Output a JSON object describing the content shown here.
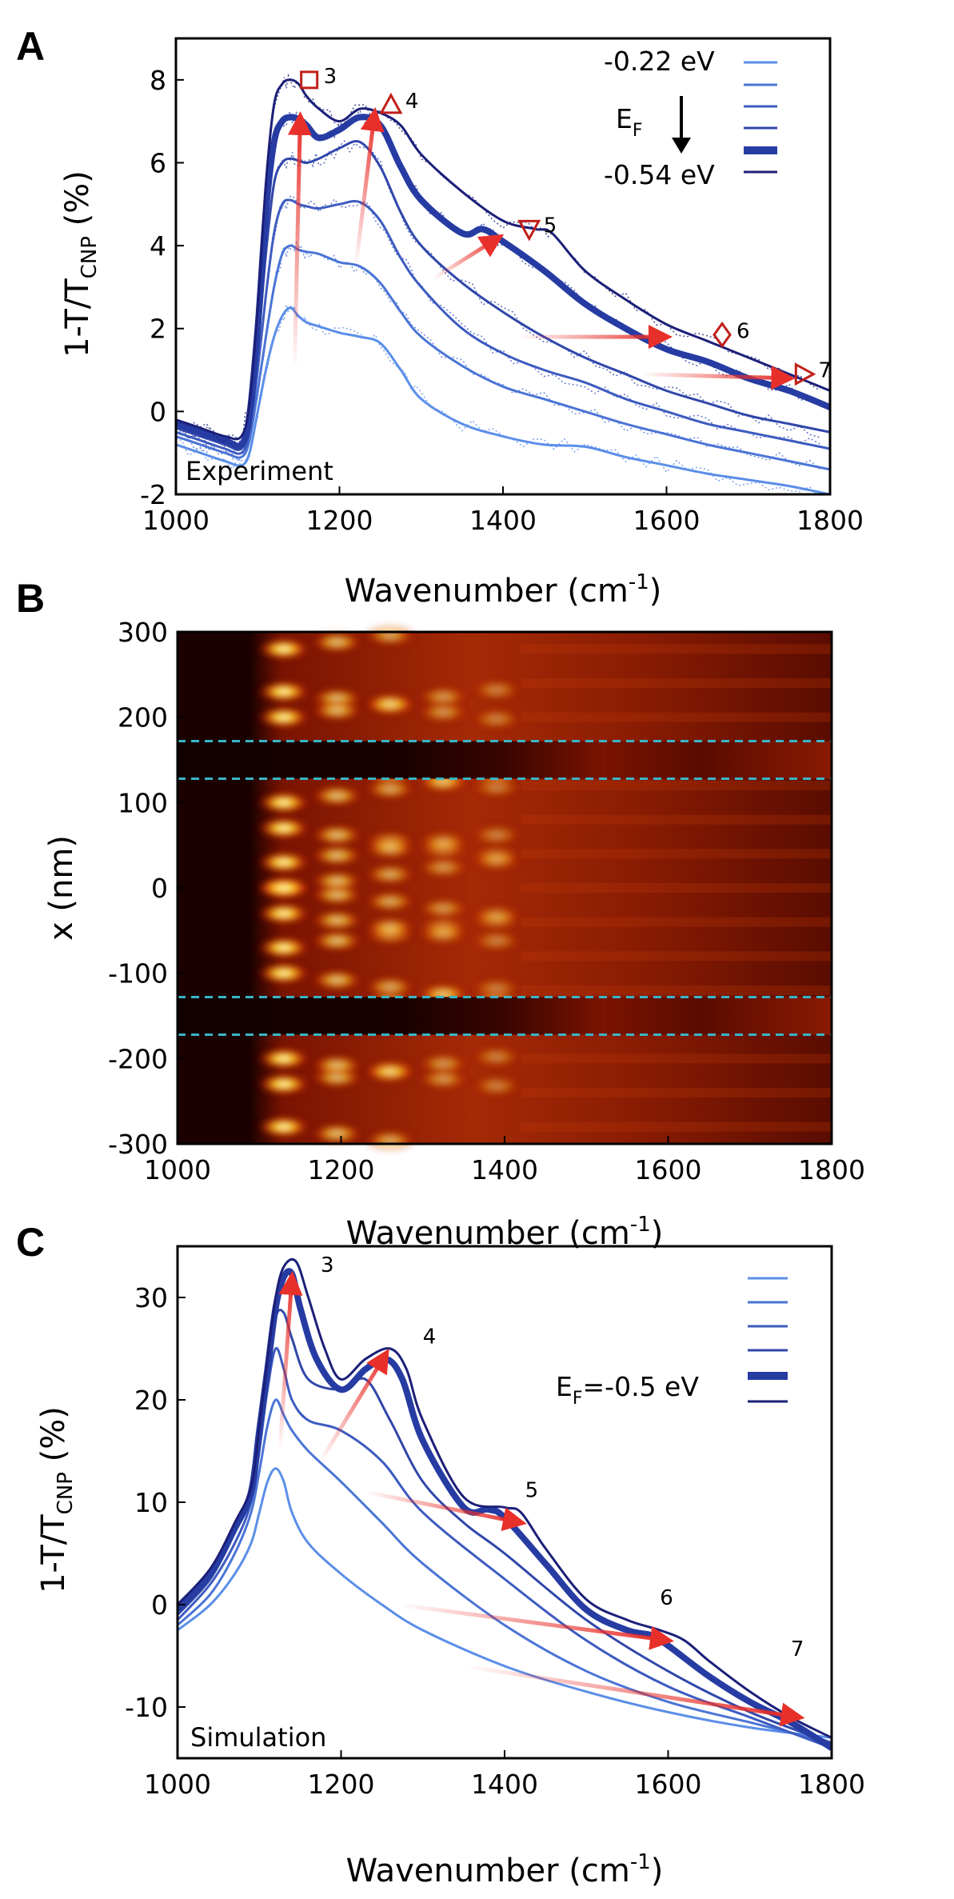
{
  "colors": {
    "series": [
      "#5b8ee8",
      "#4b74d6",
      "#3d5bc0",
      "#3047aa",
      "#263ca3",
      "#1c1f78"
    ],
    "arrow": "#e8302a",
    "marker": "#c0201a",
    "dashed": "#39b6c6",
    "frame": "#000000"
  },
  "chart_data": [
    {
      "panel": "A",
      "type": "line",
      "panel_label": "A",
      "annotation": "Experiment",
      "xlabel": "Wavenumber (cm",
      "xlabel_sup": "-1",
      "xlabel_end": ")",
      "ylabel": "1-T/T",
      "ylabel_sub": "CNP",
      "ylabel_end": " (%)",
      "xlim": [
        1000,
        1800
      ],
      "ylim": [
        -2,
        9
      ],
      "xticks": [
        "1000",
        "1200",
        "1400",
        "1600",
        "1800"
      ],
      "yticks": [
        "-2",
        "0",
        "2",
        "4",
        "6",
        "8"
      ],
      "legend": {
        "top": "-0.22 eV",
        "mid": "E",
        "mid_sub": "F",
        "bottom": "-0.54 eV"
      },
      "peak_labels": [
        {
          "text": "3",
          "x": 1163,
          "y": 8.0,
          "marker": "square"
        },
        {
          "text": "4",
          "x": 1263,
          "y": 7.4,
          "marker": "triangle-up"
        },
        {
          "text": "5",
          "x": 1432,
          "y": 4.4,
          "marker": "triangle-down"
        },
        {
          "text": "6",
          "x": 1668,
          "y": 1.85,
          "marker": "diamond"
        },
        {
          "text": "7",
          "x": 1768,
          "y": 0.9,
          "marker": "triangle-right"
        }
      ],
      "arrows": [
        {
          "from": [
            1145,
            1.0
          ],
          "to": [
            1152,
            7.1
          ]
        },
        {
          "from": [
            1220,
            3.5
          ],
          "to": [
            1243,
            7.2
          ]
        },
        {
          "from": [
            1315,
            3.2
          ],
          "to": [
            1395,
            4.2
          ]
        },
        {
          "from": [
            1420,
            1.8
          ],
          "to": [
            1600,
            1.8
          ]
        },
        {
          "from": [
            1570,
            0.9
          ],
          "to": [
            1750,
            0.8
          ]
        }
      ],
      "series": [
        {
          "x": [
            1000,
            1030,
            1060,
            1080,
            1090,
            1100,
            1110,
            1120,
            1130,
            1140,
            1150,
            1160,
            1175,
            1200,
            1225,
            1250,
            1275,
            1300,
            1350,
            1400,
            1450,
            1500,
            1550,
            1600,
            1650,
            1700,
            1750,
            1800
          ],
          "values": [
            -0.8,
            -1.0,
            -1.2,
            -1.3,
            -1.0,
            0.0,
            1.0,
            1.8,
            2.3,
            2.5,
            2.3,
            2.15,
            2.05,
            1.9,
            1.8,
            1.65,
            1.0,
            0.3,
            -0.3,
            -0.6,
            -0.8,
            -0.85,
            -1.1,
            -1.3,
            -1.5,
            -1.65,
            -1.8,
            -2.0
          ]
        },
        {
          "x": [
            1000,
            1030,
            1060,
            1080,
            1090,
            1100,
            1110,
            1120,
            1130,
            1140,
            1150,
            1160,
            1175,
            1200,
            1225,
            1250,
            1275,
            1300,
            1350,
            1400,
            1450,
            1500,
            1550,
            1600,
            1650,
            1700,
            1750,
            1800
          ],
          "values": [
            -0.6,
            -0.8,
            -1.0,
            -1.1,
            -0.7,
            0.5,
            1.8,
            3.0,
            3.8,
            4.0,
            3.9,
            3.85,
            3.8,
            3.6,
            3.5,
            3.1,
            2.4,
            1.8,
            1.1,
            0.6,
            0.3,
            0.0,
            -0.3,
            -0.55,
            -0.8,
            -1.0,
            -1.2,
            -1.4
          ]
        },
        {
          "x": [
            1000,
            1030,
            1060,
            1080,
            1090,
            1100,
            1110,
            1120,
            1130,
            1140,
            1150,
            1160,
            1175,
            1200,
            1225,
            1250,
            1275,
            1300,
            1350,
            1400,
            1450,
            1500,
            1550,
            1600,
            1650,
            1700,
            1750,
            1800
          ],
          "values": [
            -0.5,
            -0.7,
            -0.9,
            -1.0,
            -0.5,
            1.0,
            2.8,
            4.3,
            5.0,
            5.1,
            5.0,
            4.95,
            4.9,
            5.0,
            5.05,
            4.6,
            3.7,
            3.0,
            2.0,
            1.4,
            1.0,
            0.7,
            0.3,
            0.0,
            -0.3,
            -0.5,
            -0.7,
            -0.9
          ]
        },
        {
          "x": [
            1000,
            1030,
            1060,
            1080,
            1090,
            1100,
            1110,
            1120,
            1130,
            1140,
            1150,
            1160,
            1175,
            1200,
            1225,
            1250,
            1275,
            1300,
            1350,
            1400,
            1450,
            1500,
            1550,
            1600,
            1650,
            1700,
            1750,
            1800
          ],
          "values": [
            -0.4,
            -0.6,
            -0.8,
            -0.9,
            -0.3,
            1.5,
            3.8,
            5.5,
            6.0,
            6.1,
            6.05,
            6.0,
            6.1,
            6.35,
            6.5,
            5.9,
            4.8,
            4.0,
            3.1,
            2.4,
            1.8,
            1.3,
            0.9,
            0.5,
            0.2,
            -0.1,
            -0.3,
            -0.5
          ]
        },
        {
          "x": [
            1000,
            1030,
            1060,
            1080,
            1090,
            1100,
            1110,
            1120,
            1130,
            1140,
            1150,
            1160,
            1175,
            1200,
            1225,
            1250,
            1275,
            1300,
            1350,
            1375,
            1400,
            1450,
            1500,
            1550,
            1600,
            1650,
            1700,
            1750,
            1800
          ],
          "values": [
            -0.3,
            -0.5,
            -0.7,
            -0.8,
            -0.1,
            2.0,
            4.8,
            6.5,
            7.0,
            7.1,
            7.05,
            6.9,
            6.6,
            6.8,
            7.1,
            6.9,
            5.9,
            5.1,
            4.3,
            4.4,
            4.1,
            3.4,
            2.6,
            2.0,
            1.5,
            1.2,
            0.8,
            0.5,
            0.1
          ]
        },
        {
          "x": [
            1000,
            1030,
            1060,
            1080,
            1090,
            1100,
            1110,
            1120,
            1130,
            1140,
            1150,
            1160,
            1175,
            1200,
            1225,
            1250,
            1275,
            1300,
            1350,
            1400,
            1440,
            1460,
            1500,
            1550,
            1600,
            1650,
            1700,
            1750,
            1800
          ],
          "values": [
            -0.2,
            -0.4,
            -0.6,
            -0.6,
            0.2,
            2.5,
            5.5,
            7.4,
            7.9,
            8.0,
            7.9,
            7.6,
            7.3,
            7.0,
            7.3,
            7.2,
            6.9,
            6.2,
            5.3,
            4.6,
            4.4,
            4.3,
            3.4,
            2.7,
            2.1,
            1.7,
            1.3,
            0.9,
            0.5
          ]
        }
      ]
    },
    {
      "panel": "B",
      "type": "heatmap",
      "panel_label": "B",
      "xlabel": "Wavenumber (cm",
      "xlabel_sup": "-1",
      "xlabel_end": ")",
      "ylabel": "x (nm)",
      "xlim": [
        1000,
        1800
      ],
      "ylim": [
        -300,
        300
      ],
      "xticks": [
        "1000",
        "1200",
        "1400",
        "1600",
        "1800"
      ],
      "yticks": [
        "-300",
        "-200",
        "-100",
        "0",
        "100",
        "200",
        "300"
      ],
      "dashed_lines_y": [
        172,
        128,
        -128,
        -172
      ],
      "dark_bands": [
        [
          128,
          172
        ],
        [
          -172,
          -128
        ]
      ]
    },
    {
      "panel": "C",
      "type": "line",
      "panel_label": "C",
      "annotation": "Simulation",
      "xlabel": "Wavenumber (cm",
      "xlabel_sup": "-1",
      "xlabel_end": ")",
      "ylabel": "1-T/T",
      "ylabel_sub": "CNP",
      "ylabel_end": " (%)",
      "xlim": [
        1000,
        1800
      ],
      "ylim": [
        -15,
        35
      ],
      "xticks": [
        "1000",
        "1200",
        "1400",
        "1600",
        "1800"
      ],
      "yticks": [
        "-10",
        "0",
        "10",
        "20",
        "30"
      ],
      "legend": {
        "label": "E",
        "label_sub": "F",
        "label_end": "=-0.5 eV"
      },
      "peak_labels": [
        {
          "text": "3",
          "x": 1175,
          "y": 32.5
        },
        {
          "text": "4",
          "x": 1300,
          "y": 25.5
        },
        {
          "text": "5",
          "x": 1425,
          "y": 10.5
        },
        {
          "text": "6",
          "x": 1590,
          "y": 0.0
        },
        {
          "text": "7",
          "x": 1750,
          "y": -5.0
        }
      ],
      "arrows": [
        {
          "from": [
            1125,
            15.0
          ],
          "to": [
            1140,
            32.0
          ]
        },
        {
          "from": [
            1175,
            14.0
          ],
          "to": [
            1255,
            24.5
          ]
        },
        {
          "from": [
            1230,
            11.0
          ],
          "to": [
            1420,
            8.0
          ]
        },
        {
          "from": [
            1270,
            0.0
          ],
          "to": [
            1600,
            -3.5
          ]
        },
        {
          "from": [
            1350,
            -6.0
          ],
          "to": [
            1760,
            -11.0
          ]
        }
      ],
      "series": [
        {
          "x": [
            1000,
            1040,
            1070,
            1090,
            1100,
            1110,
            1120,
            1130,
            1140,
            1160,
            1200,
            1250,
            1300,
            1400,
            1500,
            1600,
            1700,
            1800
          ],
          "values": [
            -2.5,
            0.0,
            3.0,
            6.0,
            9.0,
            12.0,
            13.3,
            12.0,
            9.0,
            6.0,
            3.0,
            0.0,
            -2.5,
            -6.0,
            -8.5,
            -10.5,
            -12.0,
            -13.0
          ]
        },
        {
          "x": [
            1000,
            1040,
            1070,
            1090,
            1100,
            1110,
            1120,
            1130,
            1140,
            1160,
            1200,
            1250,
            1300,
            1400,
            1500,
            1600,
            1700,
            1800
          ],
          "values": [
            -2.0,
            1.0,
            5.0,
            9.0,
            13.0,
            17.5,
            20.0,
            18.5,
            17.0,
            15.0,
            12.0,
            8.0,
            4.0,
            -2.0,
            -6.5,
            -9.5,
            -11.5,
            -13.5
          ]
        },
        {
          "x": [
            1000,
            1040,
            1070,
            1090,
            1100,
            1110,
            1120,
            1130,
            1140,
            1160,
            1200,
            1250,
            1300,
            1400,
            1500,
            1600,
            1700,
            1800
          ],
          "values": [
            -1.5,
            2.0,
            6.0,
            10.0,
            15.0,
            21.0,
            25.0,
            23.0,
            20.0,
            18.0,
            17.0,
            14.0,
            9.0,
            2.5,
            -3.5,
            -8.0,
            -11.0,
            -14.0
          ]
        },
        {
          "x": [
            1000,
            1040,
            1070,
            1090,
            1100,
            1110,
            1120,
            1130,
            1140,
            1160,
            1200,
            1230,
            1260,
            1300,
            1350,
            1400,
            1500,
            1600,
            1700,
            1800
          ],
          "values": [
            -1.0,
            2.5,
            7.0,
            10.5,
            16.0,
            22.0,
            28.0,
            28.5,
            26.0,
            22.0,
            21.0,
            22.0,
            18.0,
            12.0,
            8.0,
            5.0,
            -1.5,
            -6.5,
            -10.5,
            -13.5
          ]
        },
        {
          "x": [
            1000,
            1040,
            1070,
            1090,
            1100,
            1110,
            1120,
            1130,
            1140,
            1150,
            1170,
            1200,
            1230,
            1255,
            1275,
            1300,
            1350,
            1380,
            1400,
            1450,
            1500,
            1550,
            1580,
            1600,
            1650,
            1700,
            1750,
            1800
          ],
          "values": [
            -0.5,
            3.0,
            7.5,
            11.0,
            17.0,
            23.0,
            29.0,
            32.0,
            32.3,
            29.0,
            24.0,
            21.0,
            23.0,
            24.0,
            22.0,
            16.0,
            9.5,
            9.3,
            8.5,
            4.0,
            -0.5,
            -2.5,
            -3.0,
            -4.0,
            -7.0,
            -9.5,
            -11.5,
            -14.0
          ]
        },
        {
          "x": [
            1000,
            1040,
            1070,
            1090,
            1100,
            1110,
            1120,
            1130,
            1145,
            1160,
            1180,
            1200,
            1230,
            1260,
            1280,
            1300,
            1350,
            1400,
            1420,
            1450,
            1500,
            1550,
            1590,
            1620,
            1650,
            1700,
            1750,
            1800
          ],
          "values": [
            0.0,
            3.5,
            8.0,
            11.5,
            17.5,
            24.0,
            30.0,
            33.0,
            33.5,
            30.0,
            25.0,
            22.0,
            24.0,
            25.0,
            23.0,
            18.0,
            10.5,
            9.5,
            9.0,
            5.5,
            0.5,
            -1.5,
            -2.5,
            -3.5,
            -5.5,
            -8.5,
            -11.0,
            -13.0
          ]
        }
      ]
    }
  ]
}
